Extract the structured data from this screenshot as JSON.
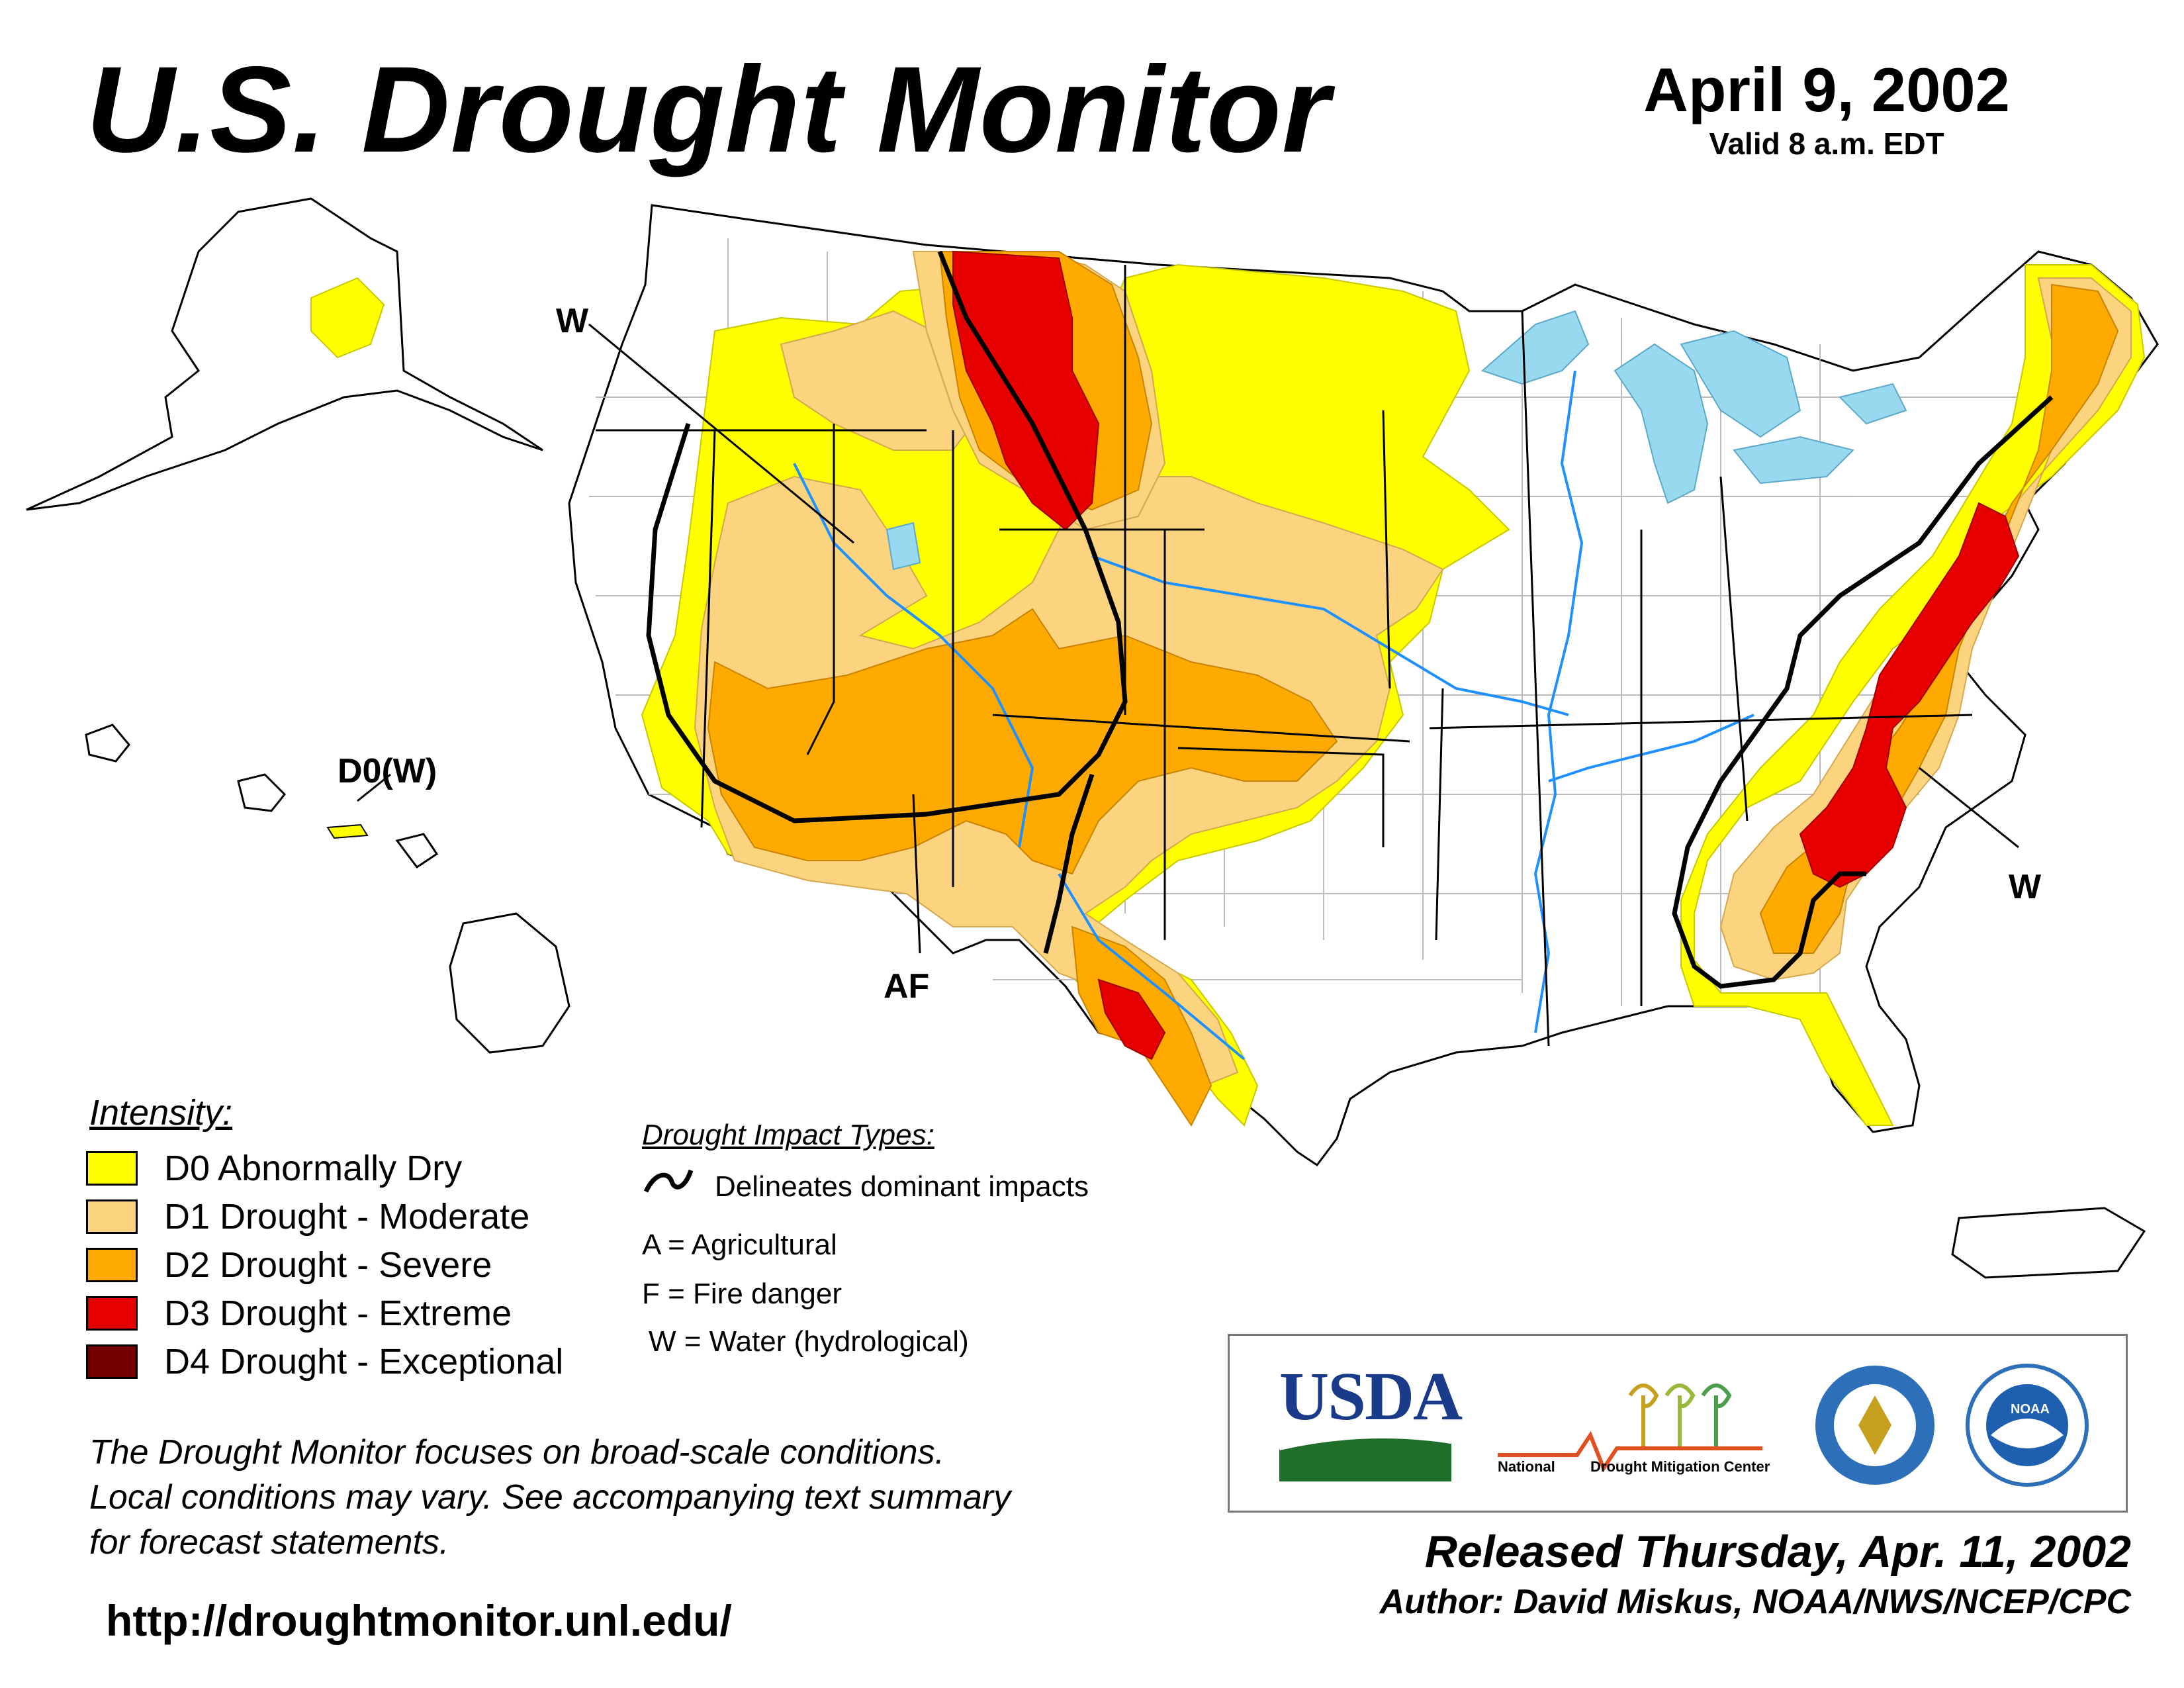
{
  "header": {
    "title": "U.S. Drought Monitor",
    "date": "April 9, 2002",
    "valid": "Valid 8 a.m. EDT"
  },
  "map_labels": {
    "north_w": "W",
    "hawaii": "D0(W)",
    "af": "AF",
    "east_w": "W"
  },
  "legend": {
    "title": "Intensity:",
    "items": [
      {
        "label": "D0 Abnormally Dry",
        "color": "#FFFF00"
      },
      {
        "label": "D1 Drought - Moderate",
        "color": "#FCD37F"
      },
      {
        "label": "D2 Drought - Severe",
        "color": "#FFAA00"
      },
      {
        "label": "D3 Drought - Extreme",
        "color": "#E60000"
      },
      {
        "label": "D4 Drought - Exceptional",
        "color": "#730000"
      }
    ]
  },
  "impacts": {
    "title": "Drought Impact Types:",
    "line_desc": "Delineates dominant impacts",
    "a": "A = Agricultural",
    "f": "F = Fire danger",
    "w": "W = Water (hydrological)"
  },
  "disclaimer": {
    "line1": "The Drought Monitor focuses on broad-scale conditions.",
    "line2": "Local conditions may vary. See accompanying text summary",
    "line3": "for forecast statements."
  },
  "url": "http://droughtmonitor.unl.edu/",
  "footer": {
    "released": "Released Thursday, Apr. 11, 2002",
    "author": "Author: David Miskus, NOAA/NWS/NCEP/CPC"
  },
  "logos": {
    "usda": "USDA",
    "ndmc_left": "National",
    "ndmc_right": "Drought Mitigation Center",
    "noaa": "NOAA"
  },
  "colors": {
    "water": "#99D9F0",
    "river": "#1E90FF",
    "county": "#B0B0B0"
  }
}
